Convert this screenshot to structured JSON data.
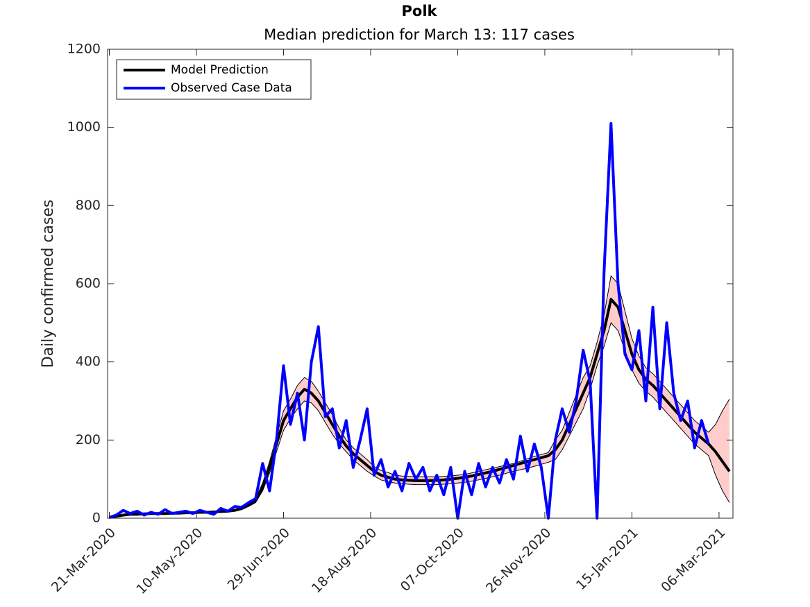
{
  "chart_data": {
    "type": "line",
    "title": "Polk",
    "subtitle": "Median prediction for March 13: 117 cases",
    "y_label": "Daily confirmed cases",
    "x": [
      "2020-03-21",
      "2020-03-25",
      "2020-03-29",
      "2020-04-02",
      "2020-04-06",
      "2020-04-10",
      "2020-04-14",
      "2020-04-18",
      "2020-04-22",
      "2020-04-26",
      "2020-04-30",
      "2020-05-04",
      "2020-05-08",
      "2020-05-12",
      "2020-05-16",
      "2020-05-20",
      "2020-05-24",
      "2020-05-28",
      "2020-06-01",
      "2020-06-05",
      "2020-06-09",
      "2020-06-13",
      "2020-06-17",
      "2020-06-21",
      "2020-06-25",
      "2020-06-29",
      "2020-07-03",
      "2020-07-07",
      "2020-07-11",
      "2020-07-15",
      "2020-07-19",
      "2020-07-23",
      "2020-07-27",
      "2020-07-31",
      "2020-08-04",
      "2020-08-08",
      "2020-08-12",
      "2020-08-16",
      "2020-08-20",
      "2020-08-24",
      "2020-08-28",
      "2020-09-01",
      "2020-09-05",
      "2020-09-09",
      "2020-09-13",
      "2020-09-17",
      "2020-09-21",
      "2020-09-25",
      "2020-09-29",
      "2020-10-03",
      "2020-10-07",
      "2020-10-11",
      "2020-10-15",
      "2020-10-19",
      "2020-10-23",
      "2020-10-27",
      "2020-10-31",
      "2020-11-04",
      "2020-11-08",
      "2020-11-12",
      "2020-11-16",
      "2020-11-20",
      "2020-11-24",
      "2020-11-28",
      "2020-12-02",
      "2020-12-06",
      "2020-12-10",
      "2020-12-14",
      "2020-12-18",
      "2020-12-22",
      "2020-12-26",
      "2020-12-30",
      "2021-01-03",
      "2021-01-07",
      "2021-01-11",
      "2021-01-15",
      "2021-01-19",
      "2021-01-23",
      "2021-01-27",
      "2021-01-31",
      "2021-02-04",
      "2021-02-08",
      "2021-02-12",
      "2021-02-16",
      "2021-02-20",
      "2021-02-24",
      "2021-02-28",
      "2021-03-04",
      "2021-03-08",
      "2021-03-12"
    ],
    "series": [
      {
        "name": "Model Prediction",
        "color": "#000000",
        "values": [
          2,
          5,
          8,
          10,
          10,
          11,
          12,
          12,
          12,
          13,
          13,
          14,
          14,
          15,
          15,
          16,
          17,
          18,
          20,
          25,
          35,
          45,
          80,
          130,
          190,
          250,
          280,
          310,
          330,
          320,
          300,
          270,
          240,
          210,
          185,
          165,
          150,
          135,
          120,
          110,
          105,
          100,
          98,
          97,
          96,
          96,
          96,
          97,
          98,
          100,
          102,
          105,
          108,
          112,
          116,
          120,
          125,
          130,
          135,
          140,
          145,
          150,
          155,
          160,
          175,
          200,
          240,
          280,
          320,
          360,
          420,
          480,
          560,
          540,
          480,
          420,
          380,
          355,
          340,
          320,
          300,
          280,
          260,
          240,
          220,
          205,
          190,
          170,
          145,
          120
        ]
      },
      {
        "name": "Observed Case Data",
        "color": "#0000ff",
        "values": [
          2,
          8,
          20,
          12,
          18,
          8,
          15,
          10,
          22,
          12,
          15,
          18,
          12,
          20,
          15,
          10,
          25,
          18,
          30,
          28,
          40,
          50,
          140,
          70,
          200,
          390,
          240,
          320,
          200,
          400,
          490,
          260,
          280,
          180,
          250,
          130,
          200,
          280,
          110,
          150,
          80,
          120,
          70,
          140,
          100,
          130,
          70,
          110,
          60,
          130,
          0,
          120,
          60,
          140,
          80,
          130,
          90,
          150,
          100,
          210,
          120,
          190,
          130,
          0,
          200,
          280,
          220,
          300,
          430,
          350,
          0,
          630,
          1010,
          600,
          420,
          380,
          480,
          300,
          540,
          280,
          500,
          320,
          250,
          300,
          180,
          250,
          190,
          null,
          null,
          null
        ]
      }
    ],
    "interval": {
      "color": "#ffcccc",
      "lower": [
        1,
        4,
        7,
        9,
        9,
        10,
        11,
        11,
        11,
        12,
        12,
        13,
        13,
        14,
        14,
        15,
        15,
        16,
        18,
        22,
        30,
        40,
        70,
        115,
        170,
        225,
        255,
        280,
        300,
        295,
        275,
        245,
        215,
        190,
        170,
        150,
        135,
        120,
        108,
        98,
        93,
        90,
        88,
        87,
        86,
        86,
        86,
        86,
        87,
        88,
        90,
        92,
        95,
        98,
        102,
        106,
        110,
        115,
        120,
        124,
        128,
        133,
        138,
        143,
        150,
        175,
        210,
        245,
        280,
        330,
        390,
        440,
        500,
        480,
        430,
        380,
        345,
        325,
        310,
        290,
        270,
        250,
        230,
        210,
        190,
        175,
        160,
        110,
        70,
        40
      ],
      "upper": [
        3,
        6,
        9,
        11,
        11,
        12,
        13,
        13,
        13,
        14,
        14,
        15,
        15,
        16,
        16,
        17,
        19,
        20,
        22,
        28,
        40,
        50,
        90,
        145,
        210,
        275,
        305,
        340,
        360,
        350,
        325,
        295,
        265,
        230,
        200,
        180,
        165,
        150,
        132,
        122,
        117,
        110,
        108,
        107,
        106,
        106,
        106,
        106,
        107,
        108,
        110,
        112,
        116,
        120,
        124,
        128,
        132,
        136,
        140,
        146,
        152,
        158,
        163,
        168,
        200,
        225,
        270,
        315,
        360,
        390,
        450,
        520,
        620,
        600,
        530,
        460,
        415,
        385,
        370,
        350,
        330,
        310,
        290,
        270,
        250,
        235,
        220,
        240,
        275,
        305
      ]
    },
    "xlim": [
      "2020-03-20",
      "2021-03-14"
    ],
    "xticks": [
      {
        "value": "2020-03-21",
        "label": "21-Mar-2020"
      },
      {
        "value": "2020-05-10",
        "label": "10-May-2020"
      },
      {
        "value": "2020-06-29",
        "label": "29-Jun-2020"
      },
      {
        "value": "2020-08-18",
        "label": "18-Aug-2020"
      },
      {
        "value": "2020-10-07",
        "label": "07-Oct-2020"
      },
      {
        "value": "2020-11-26",
        "label": "26-Nov-2020"
      },
      {
        "value": "2021-01-15",
        "label": "15-Jan-2021"
      },
      {
        "value": "2021-03-06",
        "label": "06-Mar-2021"
      }
    ],
    "ylim": [
      0,
      1200
    ],
    "yticks": [
      0,
      200,
      400,
      600,
      800,
      1000,
      1200
    ],
    "legend": "upper-left"
  }
}
